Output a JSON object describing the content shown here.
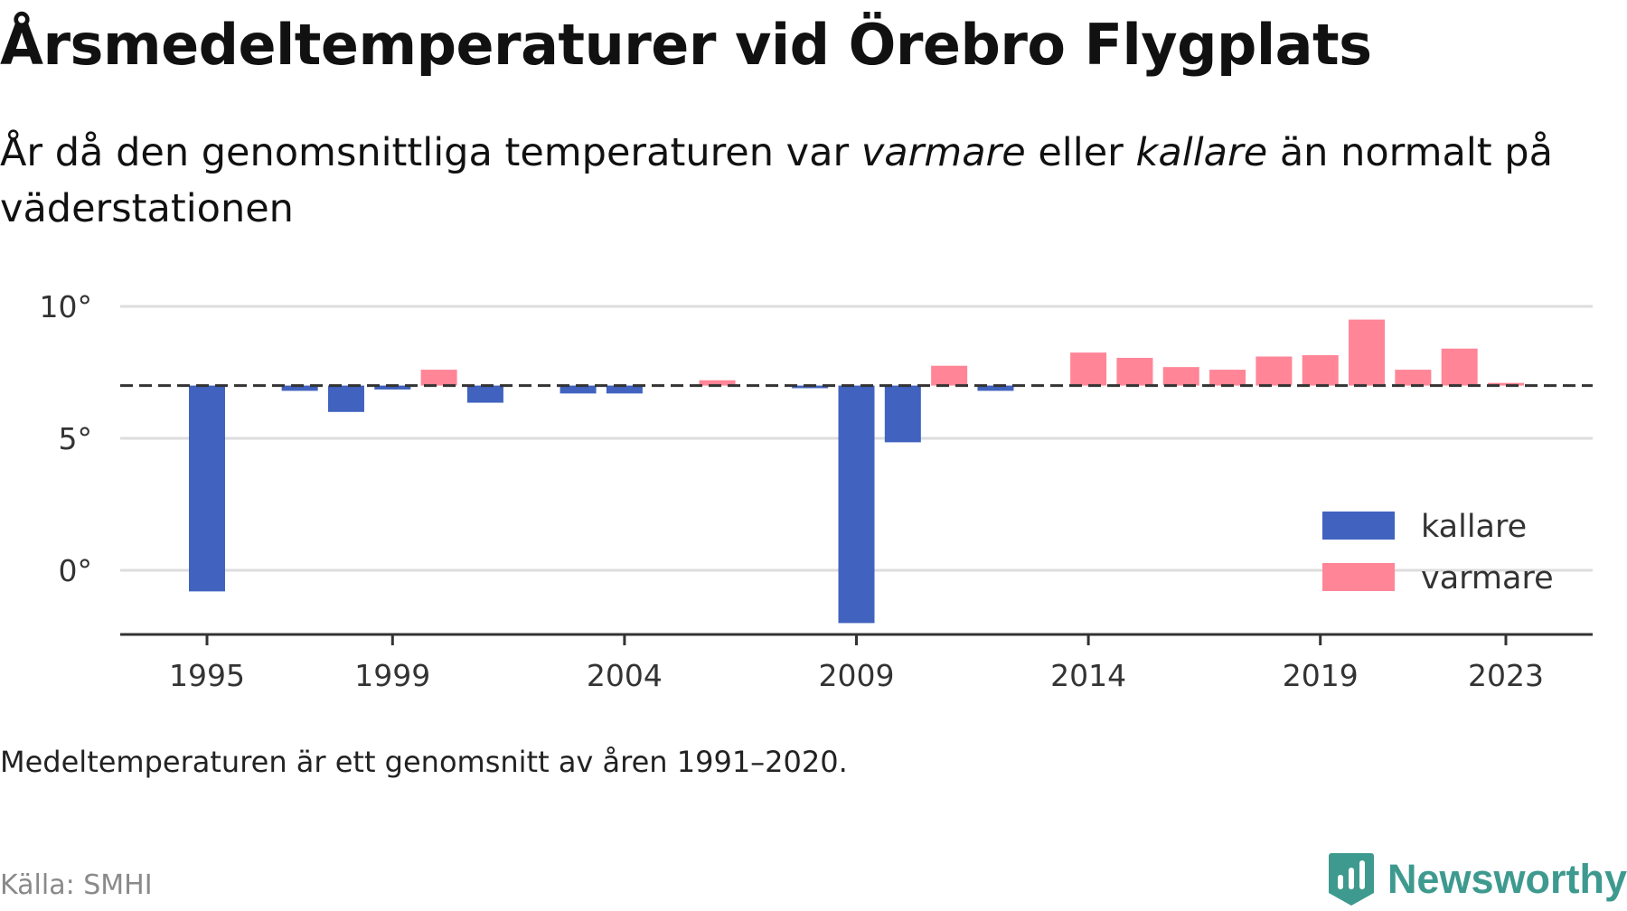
{
  "header": {
    "title": "Årsmedeltemperaturer vid Örebro Flygplats",
    "subtitle_part1": "År då den genomsnittliga temperaturen var ",
    "subtitle_warm": "varmare",
    "subtitle_part2": " eller ",
    "subtitle_cold": "kallare",
    "subtitle_part3": " än normalt på väderstationen"
  },
  "footer": {
    "note": "Medeltemperaturen är ett genomsnitt av åren 1991–2020.",
    "source": "Källa: SMHI",
    "brand": "Newsworthy"
  },
  "colors": {
    "kallare": "#4163bf",
    "varmare": "#ff8597",
    "reference_line": "#333333",
    "grid": "#dddddd",
    "brand": "#3e9a8f"
  },
  "icons": {
    "brand_logo": "newsworthy-logo-icon"
  },
  "chart_data": {
    "type": "bar",
    "reference_value": 7.0,
    "ylim": [
      -2.3,
      10.3
    ],
    "y_ticks": [
      {
        "value": 0,
        "label": "0°"
      },
      {
        "value": 5,
        "label": "5°"
      },
      {
        "value": 10,
        "label": "10°"
      }
    ],
    "x_ticks": [
      1995,
      1999,
      2004,
      2009,
      2014,
      2019,
      2023
    ],
    "xlim": [
      1993,
      2025
    ],
    "grid": "horizontal",
    "legend_position": "bottom-right",
    "legend": [
      {
        "key": "kallare",
        "label": "kallare"
      },
      {
        "key": "varmare",
        "label": "varmare"
      }
    ],
    "bars": [
      {
        "year": 1995,
        "value": -0.8
      },
      {
        "year": 1996,
        "value": 7.0
      },
      {
        "year": 1997,
        "value": 6.8
      },
      {
        "year": 1998,
        "value": 6.0
      },
      {
        "year": 1999,
        "value": 6.85
      },
      {
        "year": 2000,
        "value": 7.6
      },
      {
        "year": 2001,
        "value": 6.35
      },
      {
        "year": 2002,
        "value": 7.0
      },
      {
        "year": 2003,
        "value": 6.7
      },
      {
        "year": 2004,
        "value": 6.7
      },
      {
        "year": 2005,
        "value": 7.0
      },
      {
        "year": 2006,
        "value": 7.2
      },
      {
        "year": 2007,
        "value": 7.0
      },
      {
        "year": 2008,
        "value": 6.9
      },
      {
        "year": 2009,
        "value": -2.0
      },
      {
        "year": 2010,
        "value": 4.85
      },
      {
        "year": 2011,
        "value": 7.75
      },
      {
        "year": 2012,
        "value": 6.8
      },
      {
        "year": 2013,
        "value": 7.0
      },
      {
        "year": 2014,
        "value": 8.25
      },
      {
        "year": 2015,
        "value": 8.05
      },
      {
        "year": 2016,
        "value": 7.7
      },
      {
        "year": 2017,
        "value": 7.6
      },
      {
        "year": 2018,
        "value": 8.1
      },
      {
        "year": 2019,
        "value": 8.15
      },
      {
        "year": 2020,
        "value": 9.5
      },
      {
        "year": 2021,
        "value": 7.6
      },
      {
        "year": 2022,
        "value": 8.4
      },
      {
        "year": 2023,
        "value": 7.1
      }
    ]
  }
}
